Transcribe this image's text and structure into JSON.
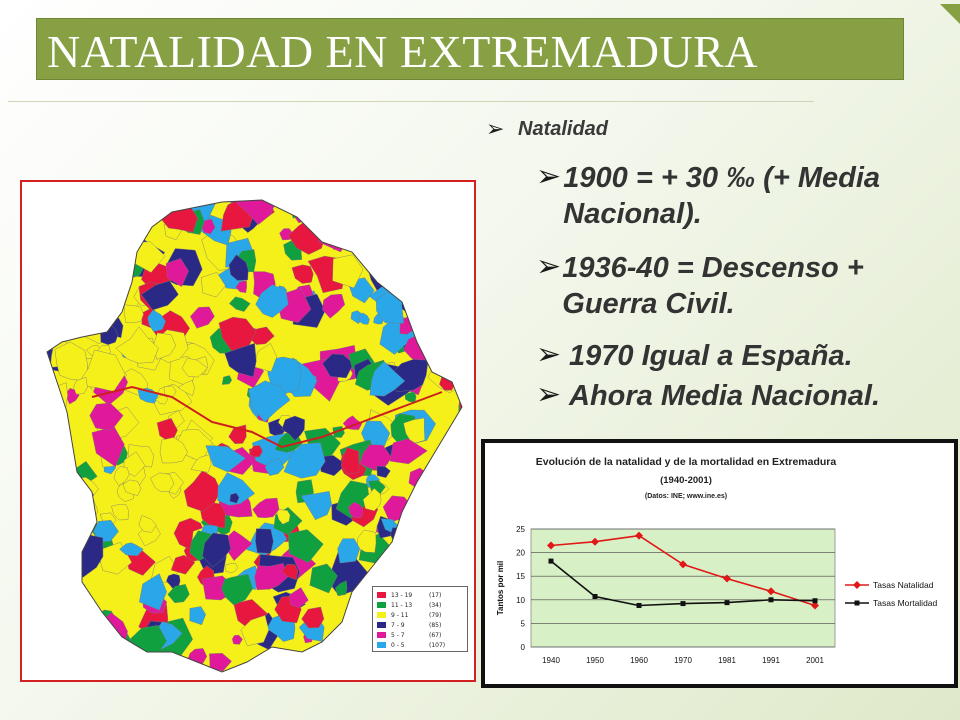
{
  "slide": {
    "title": "NATALIDAD EN EXTREMADURA"
  },
  "bullets": {
    "main": "Natalidad",
    "items": [
      "1900 = + 30 ‰ (+ Media Nacional).",
      "1936-40 = Descenso     + Guerra Civil.",
      "1970 Igual a España.",
      "Ahora Media Nacional."
    ]
  },
  "map": {
    "legend": [
      {
        "label": "13 - 19",
        "count": "(17)",
        "color": "#e8173f"
      },
      {
        "label": "11 - 13",
        "count": "(34)",
        "color": "#10a040"
      },
      {
        "label": "9 - 11",
        "count": "(79)",
        "color": "#f5f01a"
      },
      {
        "label": "7 - 9",
        "count": "(85)",
        "color": "#2a2a86"
      },
      {
        "label": "5 - 7",
        "count": "(67)",
        "color": "#e0189a"
      },
      {
        "label": "0 - 5",
        "count": "(107)",
        "color": "#2aa7e8"
      }
    ]
  },
  "chart_data": {
    "type": "line",
    "title": "Evolución de la natalidad y de la mortalidad en Extremadura",
    "subtitle": "(1940-2001)",
    "source": "(Datos: INE; www.ine.es)",
    "ylabel": "Tantos por mil",
    "xlabel": "",
    "categories": [
      "1940",
      "1950",
      "1960",
      "1970",
      "1981",
      "1991",
      "2001"
    ],
    "ylim": [
      0,
      25
    ],
    "yticks": [
      0,
      5,
      10,
      15,
      20,
      25
    ],
    "grid": true,
    "legend_position": "right",
    "series": [
      {
        "name": "Tasas Natalidad",
        "color": "#e01818",
        "marker": "diamond",
        "values": [
          21.5,
          22.3,
          23.6,
          17.5,
          14.5,
          11.8,
          8.8
        ]
      },
      {
        "name": "Tasas Mortalidad",
        "color": "#111111",
        "marker": "square",
        "values": [
          18.2,
          10.7,
          8.8,
          9.2,
          9.4,
          10.0,
          9.8
        ]
      }
    ]
  }
}
